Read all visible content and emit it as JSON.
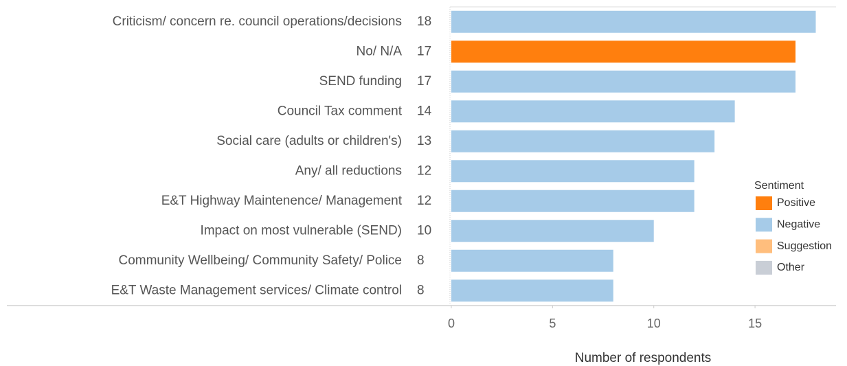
{
  "chart_data": {
    "type": "bar",
    "orientation": "horizontal",
    "categories": [
      "Criticism/ concern re. council operations/decisions",
      "No/ N/A",
      "SEND funding",
      "Council Tax comment",
      "Social care (adults or children's)",
      "Any/ all reductions",
      "E&T Highway Maintenence/ Management",
      "Impact on most vulnerable (SEND)",
      "Community Wellbeing/ Community Safety/ Police",
      "E&T Waste Management services/ Climate control"
    ],
    "series": [
      {
        "name": "Positive",
        "color": "#ff7f0e",
        "values": [
          null,
          17,
          null,
          null,
          null,
          null,
          null,
          null,
          null,
          null
        ]
      },
      {
        "name": "Negative",
        "color": "#a6cbe8",
        "values": [
          18,
          null,
          17,
          14,
          13,
          12,
          12,
          10,
          8,
          8
        ]
      },
      {
        "name": "Suggestion",
        "color": "#ffbe7d",
        "values": [
          null,
          null,
          null,
          null,
          null,
          null,
          null,
          null,
          null,
          null
        ]
      },
      {
        "name": "Other",
        "color": "#c9ced6",
        "values": [
          null,
          null,
          null,
          null,
          null,
          null,
          null,
          null,
          null,
          null
        ]
      }
    ],
    "legend_title": "Sentiment",
    "xlabel": "Number of respondents",
    "xlim": [
      0,
      19
    ],
    "xticks": [
      0,
      5,
      10,
      15
    ]
  }
}
